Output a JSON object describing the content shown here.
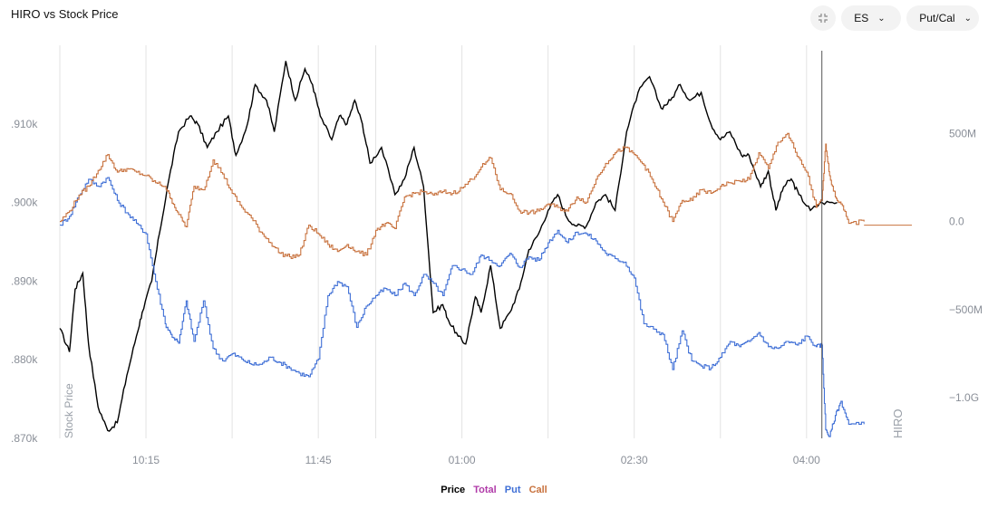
{
  "title": "HIRO vs Stock Price",
  "controls": {
    "collapse_icon": "collapse-icon",
    "symbol": "ES",
    "mode": "Put/Cal"
  },
  "colors": {
    "price": "#000000",
    "total": "#b03aa8",
    "put": "#3f6fd6",
    "call": "#c8723e"
  },
  "legend": [
    {
      "label": "Price",
      "color": "#000000"
    },
    {
      "label": "Total",
      "color": "#b03aa8"
    },
    {
      "label": "Put",
      "color": "#3f6fd6"
    },
    {
      "label": "Call",
      "color": "#c8723e"
    }
  ],
  "chart_data": {
    "type": "line",
    "xlabel": "",
    "ylabel_left": "Stock Price",
    "ylabel_right": "HIRO",
    "x_ticks": [
      "10:15",
      "11:45",
      "01:00",
      "02:30",
      "04:00"
    ],
    "x_tick_minutes": [
      615,
      705,
      780,
      870,
      960
    ],
    "xlim_minutes": [
      570,
      1015
    ],
    "cursor_minute": 968,
    "left_ticks": [
      ".870k",
      ".880k",
      ".890k",
      ".900k",
      ".910k"
    ],
    "left_tick_values": [
      870,
      880,
      890,
      900,
      910
    ],
    "ylim_left": [
      870,
      920
    ],
    "right_ticks": [
      "500M",
      "0.0",
      "−500M",
      "−1.0G"
    ],
    "right_tick_values": [
      500,
      0,
      -500,
      -1000
    ],
    "ylim_right": [
      -1230,
      1000
    ],
    "series": [
      {
        "name": "Price",
        "axis": "left",
        "color": "#000000",
        "x": [
          570,
          575,
          578,
          582,
          585,
          590,
          595,
          600,
          605,
          610,
          613,
          618,
          622,
          627,
          632,
          638,
          642,
          647,
          652,
          658,
          662,
          668,
          672,
          678,
          682,
          688,
          693,
          698,
          702,
          706,
          712,
          716,
          720,
          724,
          728,
          732,
          738,
          745,
          750,
          755,
          760,
          765,
          770,
          773,
          778,
          782,
          787,
          790,
          795,
          800,
          805,
          810,
          815,
          820,
          825,
          830,
          835,
          840,
          845,
          850,
          855,
          860,
          866,
          872,
          878,
          884,
          889,
          894,
          899,
          905,
          910,
          915,
          920,
          926,
          930,
          936,
          940,
          944,
          948,
          952,
          956,
          962,
          968,
          976
        ],
        "y": [
          884,
          881,
          889,
          891,
          882,
          874,
          871,
          872,
          878,
          883,
          886,
          890,
          896,
          903,
          909,
          911,
          910,
          907,
          909,
          911,
          906,
          910,
          915,
          913,
          909,
          918,
          913,
          917,
          915,
          911,
          908,
          911,
          910,
          913,
          910,
          905,
          907,
          901,
          903,
          907,
          902,
          886,
          887,
          885,
          883,
          882,
          888,
          886,
          892,
          884,
          886,
          889,
          894,
          896,
          899,
          901,
          898,
          897,
          897,
          900,
          901,
          899,
          909,
          914,
          916,
          912,
          913,
          915,
          913,
          914,
          910,
          908,
          909,
          906,
          906,
          902,
          904,
          899,
          902,
          903,
          901,
          899,
          900,
          900
        ]
      },
      {
        "name": "Put",
        "axis": "right",
        "color": "#3f6fd6",
        "x": [
          570,
          575,
          580,
          585,
          590,
          595,
          600,
          605,
          610,
          615,
          620,
          625,
          628,
          632,
          636,
          640,
          645,
          650,
          655,
          660,
          665,
          670,
          675,
          680,
          685,
          690,
          695,
          700,
          705,
          710,
          715,
          720,
          725,
          730,
          735,
          740,
          745,
          750,
          755,
          760,
          765,
          770,
          775,
          780,
          785,
          790,
          795,
          800,
          805,
          810,
          815,
          820,
          825,
          830,
          835,
          840,
          845,
          850,
          855,
          860,
          865,
          870,
          875,
          880,
          885,
          890,
          895,
          900,
          905,
          910,
          915,
          920,
          925,
          930,
          935,
          940,
          945,
          950,
          955,
          960,
          965,
          968,
          970,
          972,
          975,
          978,
          982,
          990
        ],
        "y": [
          -20,
          30,
          150,
          240,
          200,
          250,
          120,
          50,
          -10,
          -70,
          -340,
          -580,
          -640,
          -690,
          -450,
          -680,
          -450,
          -720,
          -790,
          -750,
          -780,
          -810,
          -810,
          -770,
          -800,
          -830,
          -860,
          -880,
          -780,
          -420,
          -340,
          -370,
          -600,
          -480,
          -420,
          -380,
          -420,
          -350,
          -420,
          -300,
          -350,
          -420,
          -250,
          -270,
          -300,
          -190,
          -220,
          -250,
          -180,
          -260,
          -200,
          -220,
          -120,
          -50,
          -120,
          -60,
          -70,
          -110,
          -180,
          -210,
          -230,
          -320,
          -580,
          -610,
          -640,
          -840,
          -620,
          -790,
          -820,
          -830,
          -770,
          -680,
          -710,
          -680,
          -630,
          -710,
          -720,
          -680,
          -700,
          -650,
          -710,
          -700,
          -1180,
          -1220,
          -1100,
          -1020,
          -1150,
          -1150
        ]
      },
      {
        "name": "Call",
        "axis": "right",
        "color": "#c8723e",
        "x": [
          570,
          575,
          580,
          585,
          590,
          595,
          600,
          605,
          610,
          615,
          620,
          625,
          628,
          632,
          636,
          640,
          645,
          650,
          655,
          660,
          665,
          670,
          675,
          680,
          685,
          690,
          695,
          700,
          705,
          710,
          715,
          720,
          725,
          730,
          735,
          740,
          745,
          750,
          755,
          760,
          765,
          770,
          775,
          780,
          785,
          790,
          795,
          800,
          805,
          810,
          815,
          820,
          825,
          830,
          835,
          840,
          845,
          850,
          855,
          860,
          865,
          870,
          875,
          880,
          885,
          890,
          895,
          900,
          905,
          910,
          915,
          920,
          925,
          930,
          935,
          940,
          945,
          950,
          955,
          960,
          965,
          968,
          970,
          972,
          975,
          978,
          982,
          990
        ],
        "y": [
          0,
          60,
          150,
          200,
          290,
          380,
          280,
          300,
          280,
          260,
          220,
          200,
          130,
          40,
          -30,
          200,
          180,
          350,
          270,
          160,
          80,
          20,
          -60,
          -120,
          -180,
          -200,
          -190,
          -20,
          -70,
          -130,
          -170,
          -130,
          -170,
          -190,
          -50,
          -10,
          -40,
          140,
          160,
          170,
          150,
          170,
          160,
          190,
          240,
          310,
          360,
          180,
          160,
          60,
          50,
          60,
          100,
          80,
          60,
          140,
          110,
          240,
          330,
          390,
          420,
          380,
          320,
          220,
          110,
          0,
          120,
          120,
          180,
          160,
          200,
          220,
          230,
          240,
          390,
          300,
          450,
          500,
          370,
          280,
          80,
          120,
          440,
          260,
          140,
          100,
          -10,
          0
        ]
      }
    ]
  }
}
